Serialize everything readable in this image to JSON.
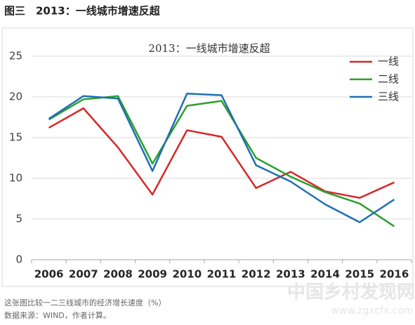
{
  "header": "图三　2013：一线城市增速反超",
  "chart_data": {
    "type": "line",
    "title": "2013：一线城市增速反超",
    "categories": [
      "2006",
      "2007",
      "2008",
      "2009",
      "2010",
      "2011",
      "2012",
      "2013",
      "2014",
      "2015",
      "2016"
    ],
    "series": [
      {
        "name": "一线",
        "color": "#d62728",
        "values": [
          16.2,
          18.6,
          13.8,
          8.0,
          15.9,
          15.1,
          8.8,
          10.8,
          8.4,
          7.6,
          9.5
        ]
      },
      {
        "name": "二线",
        "color": "#2ca02c",
        "values": [
          17.2,
          19.7,
          20.1,
          11.8,
          18.9,
          19.5,
          12.5,
          10.2,
          8.3,
          6.9,
          4.1
        ]
      },
      {
        "name": "三线",
        "color": "#1f6fb4",
        "values": [
          17.3,
          20.1,
          19.8,
          10.9,
          20.4,
          20.2,
          11.6,
          9.6,
          6.8,
          4.6,
          7.4
        ]
      }
    ],
    "ylim": [
      0,
      25
    ],
    "yticks": [
      0,
      5,
      10,
      15,
      20,
      25
    ],
    "grid": true,
    "legend": "upper right"
  },
  "footer": {
    "note": "这张图比较一二三线城市的经济增长速度（%）",
    "source": "数据来源：WIND，作者计算。"
  },
  "watermark": {
    "name": "中国乡村发现网",
    "url": "www.zgxcfx.com"
  }
}
